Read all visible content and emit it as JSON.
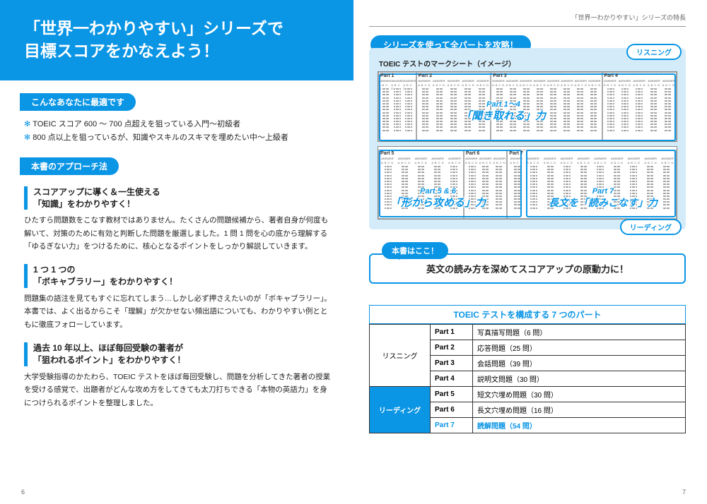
{
  "colors": {
    "primary": "#0a95e5",
    "panel_bg": "#d4ecf9",
    "text": "#222222",
    "border": "#333333"
  },
  "left": {
    "hero_line1": "「世界一わかりやすい」シリーズで",
    "hero_line2": "目標スコアをかなえよう！",
    "sec1_title": "こんなあなたに最適です",
    "bullets": [
      "TOEIC スコア 600 ～ 700 点超えを狙っている入門～初級者",
      "800 点以上を狙っているが、知識やスキルのスキマを埋めたい中～上級者"
    ],
    "sec2_title": "本書のアプローチ法",
    "blocks": [
      {
        "h1": "スコアアップに導く＆一生使える",
        "h2": "「知識」をわかりやすく！",
        "body": "ひたすら問題数をこなす教材ではありません。たくさんの問題候補から、著者自身が何度も解いて、対策のために有効と判断した問題を厳選しました。1 問 1 問を心の底から理解する「ゆるぎない力」をつけるために、核心となるポイントをしっかり解説していきます。"
      },
      {
        "h1": "1 つ 1 つの",
        "h2": "「ボキャブラリー」をわかりやすく！",
        "body": "問題集の語注を見てもすぐに忘れてしまう…しかし必ず押さえたいのが「ボキャブラリー」。本書では、よく出るからこそ「理解」が欠かせない頻出語についても、わかりやすい例とともに徹底フォローしています。"
      },
      {
        "h1": "過去 10 年以上、ほぼ毎回受験の著者が",
        "h2": "「狙われるポイント」をわかりやすく！",
        "body": "大学受験指導のかたわら、TOEIC テストをほぼ毎回受験し、問題を分析してきた著者の授業を受ける感覚で、出題者がどんな攻め方をしてきても太刀打ちできる「本物の英語力」を身につけられるポイントを整理しました。"
      }
    ],
    "page_num": "6"
  },
  "right": {
    "header": "「世界一わかりやすい」シリーズの特長",
    "attack_title": "シリーズを使って全パートを攻略！",
    "sheet_caption": "TOEIC テストのマークシート（イメージ）",
    "listening_label": "リスニング",
    "reading_label": "リーディング",
    "parts_top": [
      "Part 1",
      "Part 2",
      "Part 3",
      "Part 4"
    ],
    "parts_bot": [
      "Part 5",
      "Part 6",
      "Part 7"
    ],
    "answer_header": "ANSWER",
    "abcd": "A B C D",
    "overlay1_l1": "Part 1～4",
    "overlay1_l2": "「聞き取れる」力",
    "overlay2_l1": "Part 5 & 6",
    "overlay2_l2": "「形から攻める」力",
    "overlay3_l1": "Part 7",
    "overlay3_l2": "長文を「読みこなす」力",
    "here_label": "本書はここ！",
    "callout": "英文の読み方を深めてスコアアップの原動力に！",
    "table_title": "TOEIC テストを構成する 7 つのパート",
    "table_cat_listen": "リスニング",
    "table_cat_read": "リーディング",
    "rows": [
      {
        "part": "Part 1",
        "desc": "写真描写問題（6 問）"
      },
      {
        "part": "Part 2",
        "desc": "応答問題（25 問）"
      },
      {
        "part": "Part 3",
        "desc": "会話問題（39 問）"
      },
      {
        "part": "Part 4",
        "desc": "説明文問題（30 問）"
      },
      {
        "part": "Part 5",
        "desc": "短文穴埋め問題（30 問）"
      },
      {
        "part": "Part 6",
        "desc": "長文穴埋め問題（16 問）"
      },
      {
        "part": "Part 7",
        "desc": "読解問題（54 問）"
      }
    ],
    "page_num": "7"
  }
}
